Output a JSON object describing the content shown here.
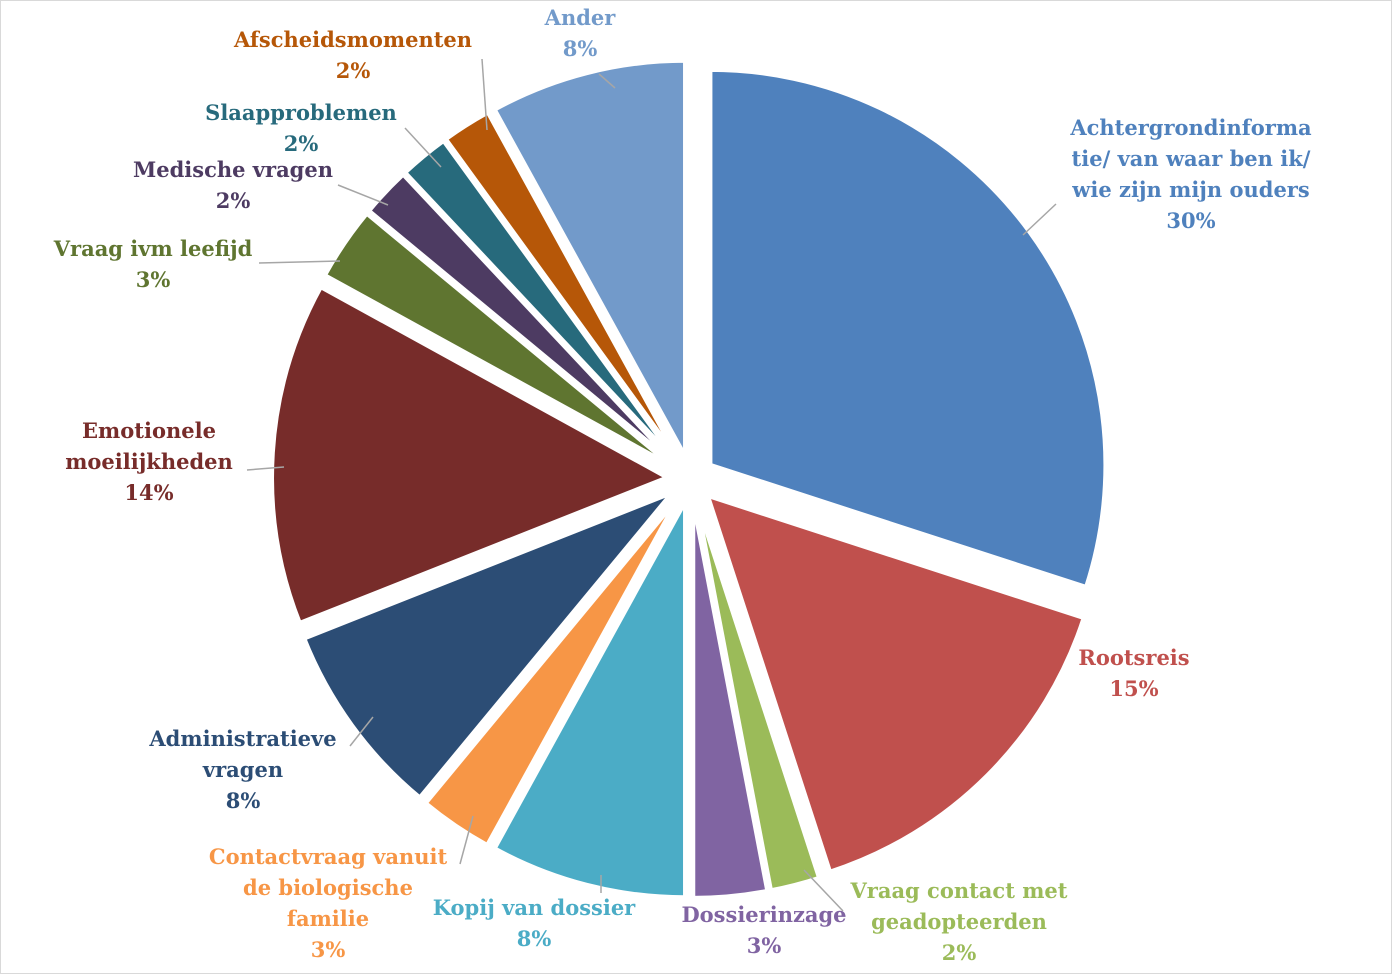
{
  "chart_data": {
    "type": "pie",
    "title": "",
    "slices": [
      {
        "label": "Achtergrondinformatie/ van waar ben ik/ wie zijn mijn ouders",
        "label_lines": [
          "Achtergrondinforma",
          "tie/ van waar ben ik/",
          "wie zijn mijn ouders"
        ],
        "value": 30,
        "value_label": "30%",
        "color": "#4F81BD"
      },
      {
        "label": "Rootsreis",
        "label_lines": [
          "Rootsreis"
        ],
        "value": 15,
        "value_label": "15%",
        "color": "#C0504D"
      },
      {
        "label": "Vraag contact met geadopteerden",
        "label_lines": [
          "Vraag contact met",
          "geadopteerden"
        ],
        "value": 2,
        "value_label": "2%",
        "color": "#9BBB59"
      },
      {
        "label": "Dossierinzage",
        "label_lines": [
          "Dossierinzage"
        ],
        "value": 3,
        "value_label": "3%",
        "color": "#8064A2"
      },
      {
        "label": "Kopij van dossier",
        "label_lines": [
          "Kopij van dossier"
        ],
        "value": 8,
        "value_label": "8%",
        "color": "#4BACC6"
      },
      {
        "label": "Contactvraag vanuit de biologische familie",
        "label_lines": [
          "Contactvraag vanuit",
          "de biologische",
          "familie"
        ],
        "value": 3,
        "value_label": "3%",
        "color": "#F79646"
      },
      {
        "label": "Administratieve vragen",
        "label_lines": [
          "Administratieve",
          "vragen"
        ],
        "value": 8,
        "value_label": "8%",
        "color": "#2C4D75"
      },
      {
        "label": "Emotionele moeilijkheden",
        "label_lines": [
          "Emotionele",
          "moeilijkheden"
        ],
        "value": 14,
        "value_label": "14%",
        "color": "#772C2A"
      },
      {
        "label": "Vraag ivm leefijd",
        "label_lines": [
          "Vraag ivm leefijd"
        ],
        "value": 3,
        "value_label": "3%",
        "color": "#5F7530"
      },
      {
        "label": "Medische vragen",
        "label_lines": [
          "Medische vragen"
        ],
        "value": 2,
        "value_label": "2%",
        "color": "#4D3B62"
      },
      {
        "label": "Slaapproblemen",
        "label_lines": [
          "Slaapproblemen"
        ],
        "value": 2,
        "value_label": "2%",
        "color": "#276A7C"
      },
      {
        "label": "Afscheidsmomenten",
        "label_lines": [
          "Afscheidsmomenten"
        ],
        "value": 2,
        "value_label": "2%",
        "color": "#B65708"
      },
      {
        "label": "Ander",
        "label_lines": [
          "Ander"
        ],
        "value": 8,
        "value_label": "8%",
        "color": "#729ACA"
      }
    ],
    "start": "12 o'clock",
    "direction": "clockwise",
    "exploded": true,
    "legend": "none",
    "data_labels": "category name and percentage, outside with leader lines"
  }
}
